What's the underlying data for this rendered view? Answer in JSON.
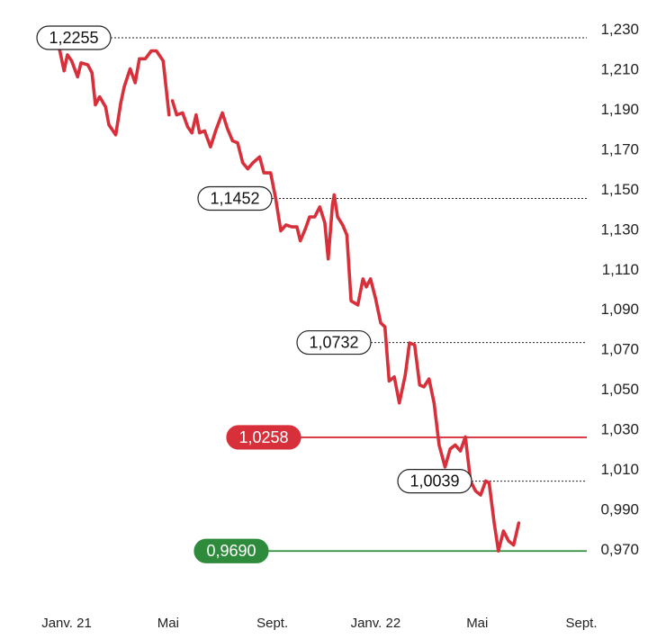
{
  "chart_data": {
    "type": "line",
    "title": "",
    "xlabel": "",
    "ylabel": "",
    "ylim": [
      0.958,
      1.232
    ],
    "y_axis_side": "right",
    "grid": false,
    "y_ticks": [
      "1,230",
      "1,210",
      "1,190",
      "1,170",
      "1,150",
      "1,130",
      "1,110",
      "1,090",
      "1,070",
      "1,050",
      "1,030",
      "1,010",
      "0,990",
      "0,970"
    ],
    "y_tick_values": [
      1.23,
      1.21,
      1.19,
      1.17,
      1.15,
      1.13,
      1.11,
      1.09,
      1.07,
      1.05,
      1.03,
      1.01,
      0.99,
      0.97
    ],
    "x_range": [
      "2020-12-15",
      "2022-09-08"
    ],
    "x_ticks": [
      {
        "label": "Janv. 21",
        "date": "2021-01-01"
      },
      {
        "label": "Mai",
        "date": "2021-05-01"
      },
      {
        "label": "Sept.",
        "date": "2021-09-01"
      },
      {
        "label": "Janv. 22",
        "date": "2022-01-01"
      },
      {
        "label": "Mai",
        "date": "2022-05-01"
      },
      {
        "label": "Sept.",
        "date": "2022-09-01"
      }
    ],
    "series": [
      {
        "color": "#d8303a",
        "segments": [
          [
            [
              "2020-12-17",
              1.222
            ],
            [
              "2020-12-22",
              1.223
            ],
            [
              "2020-12-29",
              1.209
            ],
            [
              "2021-01-02",
              1.217
            ],
            [
              "2021-01-07",
              1.214
            ],
            [
              "2021-01-14",
              1.206
            ],
            [
              "2021-01-18",
              1.213
            ],
            [
              "2021-01-26",
              1.212
            ],
            [
              "2021-01-31",
              1.208
            ],
            [
              "2021-02-04",
              1.192
            ],
            [
              "2021-02-09",
              1.196
            ],
            [
              "2021-02-16",
              1.191
            ],
            [
              "2021-02-20",
              1.182
            ],
            [
              "2021-02-28",
              1.177
            ],
            [
              "2021-03-06",
              1.193
            ],
            [
              "2021-03-10",
              1.201
            ],
            [
              "2021-03-17",
              1.21
            ],
            [
              "2021-03-23",
              1.203
            ],
            [
              "2021-03-28",
              1.215
            ],
            [
              "2021-04-04",
              1.215
            ],
            [
              "2021-04-11",
              1.219
            ],
            [
              "2021-04-17",
              1.219
            ],
            [
              "2021-04-25",
              1.214
            ],
            [
              "2021-05-02",
              1.187
            ]
          ],
          [
            [
              "2021-05-06",
              1.194
            ],
            [
              "2021-05-11",
              1.187
            ],
            [
              "2021-05-18",
              1.188
            ],
            [
              "2021-05-24",
              1.181
            ],
            [
              "2021-05-29",
              1.178
            ],
            [
              "2021-06-03",
              1.187
            ],
            [
              "2021-06-07",
              1.178
            ],
            [
              "2021-06-13",
              1.179
            ],
            [
              "2021-06-20",
              1.171
            ],
            [
              "2021-06-26",
              1.179
            ],
            [
              "2021-07-04",
              1.188
            ],
            [
              "2021-07-10",
              1.18
            ],
            [
              "2021-07-16",
              1.174
            ],
            [
              "2021-07-22",
              1.173
            ],
            [
              "2021-07-28",
              1.163
            ],
            [
              "2021-08-03",
              1.16
            ],
            [
              "2021-08-09",
              1.163
            ],
            [
              "2021-08-17",
              1.166
            ],
            [
              "2021-08-22",
              1.158
            ],
            [
              "2021-08-30",
              1.158
            ],
            [
              "2021-09-05",
              1.145
            ],
            [
              "2021-09-11",
              1.129
            ],
            [
              "2021-09-17",
              1.132
            ],
            [
              "2021-09-24",
              1.131
            ],
            [
              "2021-09-30",
              1.131
            ],
            [
              "2021-10-04",
              1.124
            ],
            [
              "2021-10-10",
              1.13
            ],
            [
              "2021-10-15",
              1.136
            ],
            [
              "2021-10-21",
              1.136
            ],
            [
              "2021-10-27",
              1.141
            ],
            [
              "2021-11-02",
              1.133
            ],
            [
              "2021-11-06",
              1.115
            ],
            [
              "2021-11-11",
              1.142
            ],
            [
              "2021-11-13",
              1.147
            ],
            [
              "2021-11-17",
              1.136
            ],
            [
              "2021-11-23",
              1.132
            ],
            [
              "2021-11-28",
              1.127
            ],
            [
              "2021-12-03",
              1.094
            ],
            [
              "2021-12-11",
              1.092
            ],
            [
              "2021-12-17",
              1.105
            ],
            [
              "2021-12-21",
              1.101
            ],
            [
              "2021-12-26",
              1.105
            ],
            [
              "2022-01-01",
              1.095
            ],
            [
              "2022-01-07",
              1.083
            ],
            [
              "2022-01-12",
              1.081
            ],
            [
              "2022-01-17",
              1.054
            ],
            [
              "2022-01-23",
              1.056
            ],
            [
              "2022-01-29",
              1.043
            ],
            [
              "2022-02-05",
              1.057
            ],
            [
              "2022-02-10",
              1.073
            ],
            [
              "2022-02-16",
              1.072
            ],
            [
              "2022-02-22",
              1.052
            ],
            [
              "2022-02-27",
              1.051
            ],
            [
              "2022-03-05",
              1.055
            ],
            [
              "2022-03-11",
              1.043
            ],
            [
              "2022-03-17",
              1.022
            ],
            [
              "2022-03-24",
              1.011
            ],
            [
              "2022-03-30",
              1.02
            ],
            [
              "2022-04-05",
              1.022
            ],
            [
              "2022-04-11",
              1.019
            ],
            [
              "2022-04-17",
              1.026
            ],
            [
              "2022-04-23",
              1.004
            ],
            [
              "2022-04-29",
              0.999
            ],
            [
              "2022-05-05",
              0.997
            ],
            [
              "2022-05-11",
              1.004
            ],
            [
              "2022-05-15",
              1.003
            ],
            [
              "2022-05-21",
              0.983
            ],
            [
              "2022-05-26",
              0.969
            ],
            [
              "2022-06-01",
              0.979
            ],
            [
              "2022-06-07",
              0.974
            ],
            [
              "2022-06-13",
              0.972
            ],
            [
              "2022-06-19",
              0.983
            ]
          ]
        ]
      }
    ],
    "reference_lines": [
      {
        "value": 1.2255,
        "label": "1,2255",
        "style": "dotted",
        "color": "#222222"
      },
      {
        "value": 1.1452,
        "label": "1,1452",
        "style": "dotted",
        "color": "#222222"
      },
      {
        "value": 1.0732,
        "label": "1,0732",
        "style": "dotted",
        "color": "#222222"
      },
      {
        "value": 1.0039,
        "label": "1,0039",
        "style": "dotted",
        "color": "#222222"
      },
      {
        "value": 1.0258,
        "label": "1,0258",
        "style": "solid",
        "color": "#d8303a"
      },
      {
        "value": 0.969,
        "label": "0,9690",
        "style": "solid",
        "color": "#2e8b3c"
      }
    ]
  }
}
